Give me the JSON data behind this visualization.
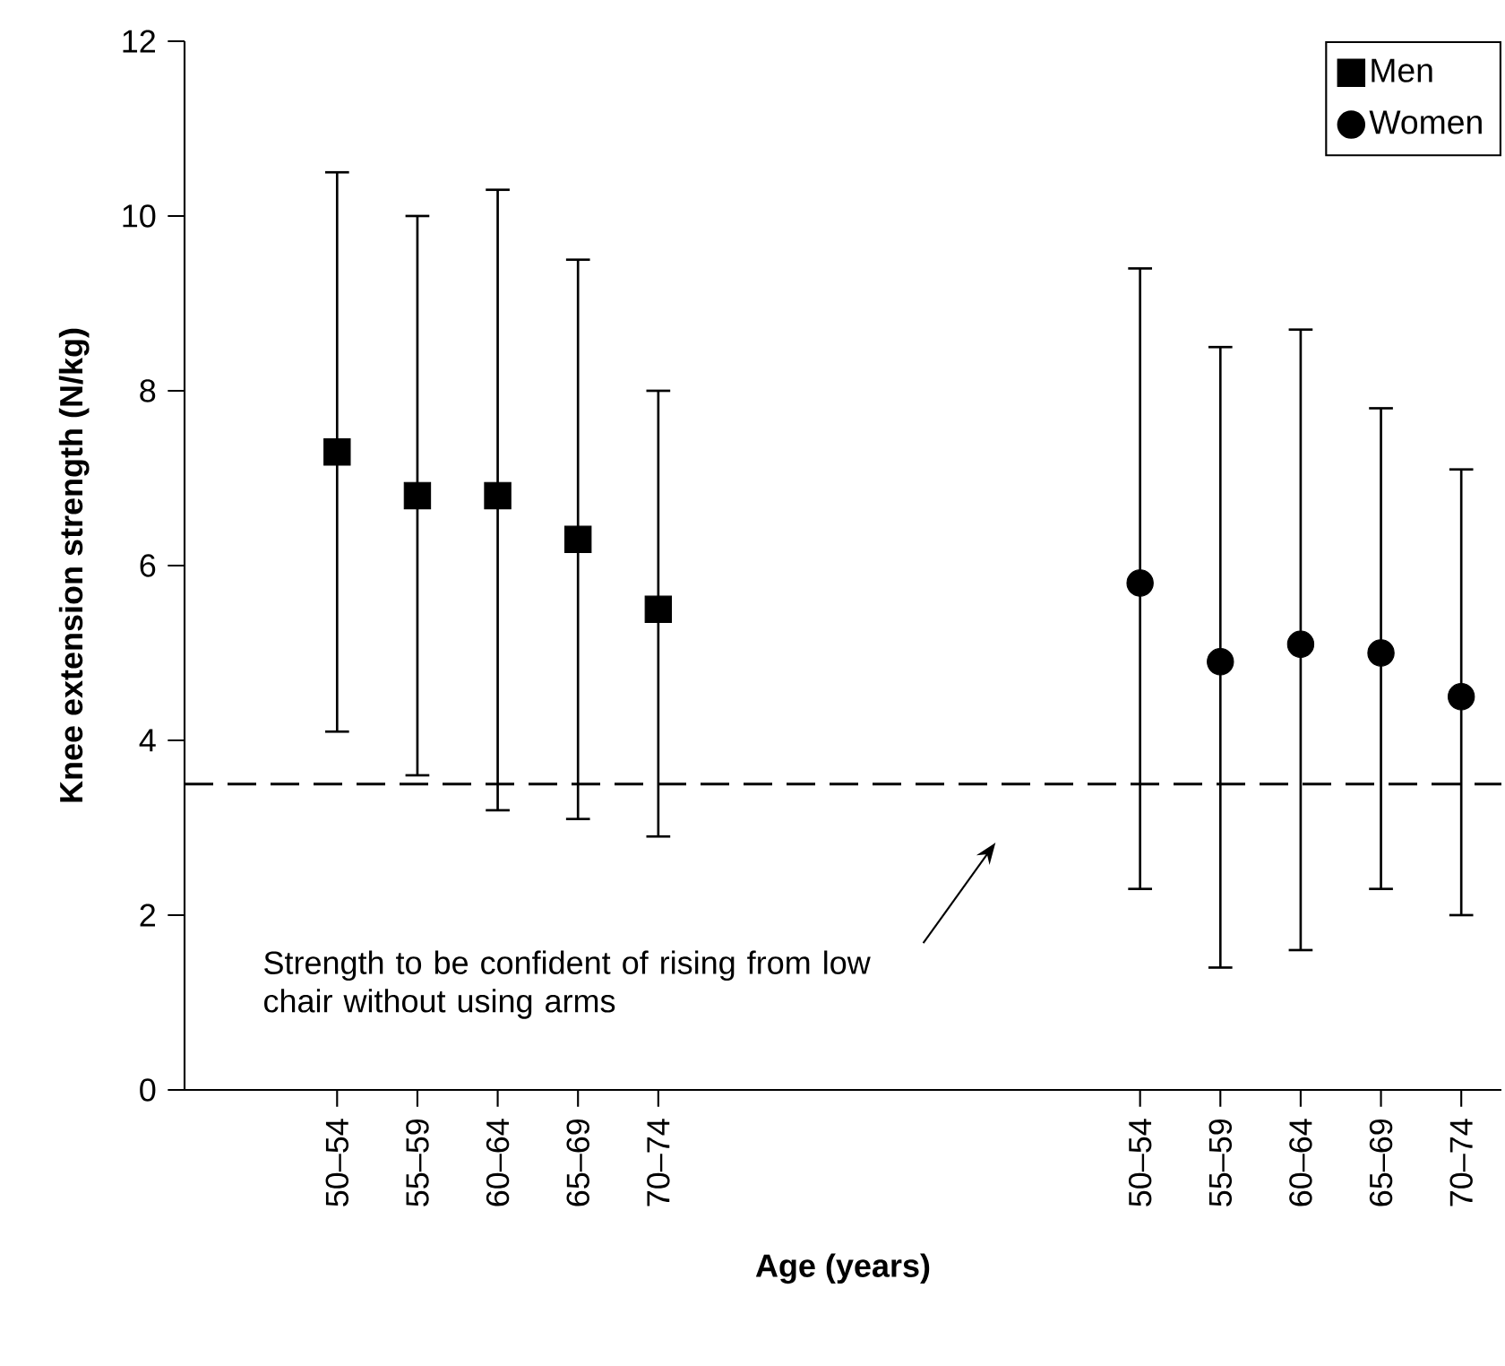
{
  "chart_data": {
    "type": "scatter",
    "xlabel": "Age (years)",
    "ylabel": "Knee extension strength (N/kg)",
    "categories": [
      "50–54",
      "55–59",
      "60–64",
      "65–69",
      "70–74",
      null,
      null,
      null,
      null,
      null,
      "50–54",
      "55–59",
      "60–64",
      "65–69",
      "70–74"
    ],
    "series": [
      {
        "name": "Men",
        "color": "#000000",
        "marker": "square",
        "values": [
          7.3,
          6.8,
          6.8,
          6.3,
          5.5,
          null,
          null,
          null,
          null,
          null,
          null,
          null,
          null,
          null,
          null
        ],
        "errors": [
          [
            4.1,
            10.5
          ],
          [
            3.6,
            10.0
          ],
          [
            3.2,
            10.3
          ],
          [
            3.1,
            9.5
          ],
          [
            2.9,
            8.0
          ],
          null,
          null,
          null,
          null,
          null,
          null,
          null,
          null,
          null,
          null
        ]
      },
      {
        "name": "Women",
        "color": "#000000",
        "marker": "circle",
        "values": [
          null,
          null,
          null,
          null,
          null,
          null,
          null,
          null,
          null,
          null,
          5.8,
          4.9,
          5.1,
          5.0,
          4.5
        ],
        "errors": [
          null,
          null,
          null,
          null,
          null,
          null,
          null,
          null,
          null,
          null,
          [
            2.3,
            9.4
          ],
          [
            1.4,
            8.5
          ],
          [
            1.6,
            8.7
          ],
          [
            2.3,
            7.8
          ],
          [
            2.0,
            7.1
          ]
        ]
      }
    ],
    "ylim": [
      0,
      12
    ],
    "yticks": [
      0,
      2,
      4,
      6,
      8,
      10,
      12
    ],
    "legend": "top right",
    "annotations": [
      "Strength to be confident of rising from low chair without using arms"
    ],
    "ref_lines": [
      {
        "axis": "y",
        "value": 3.5,
        "line_style": "dashed",
        "color": "#000000"
      }
    ]
  }
}
